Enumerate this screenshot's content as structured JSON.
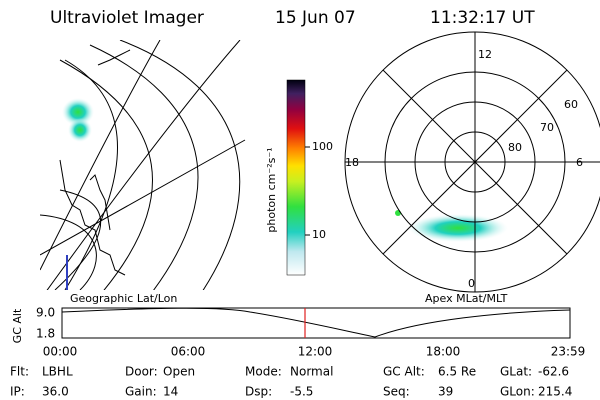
{
  "header": {
    "instrument": "Ultraviolet Imager",
    "date": "15 Jun 07",
    "time": "11:32:17 UT"
  },
  "colorbar": {
    "label": "photon cm⁻²s⁻¹",
    "ticks": [
      "100",
      "10"
    ]
  },
  "polar": {
    "mlt_labels": [
      "12",
      "18",
      "6",
      "0"
    ],
    "lat_labels": [
      "60",
      "70",
      "80"
    ]
  },
  "timeline": {
    "left_title": "Geographic Lat/Lon",
    "right_title": "Apex MLat/MLT",
    "axis_label": "GC Alt",
    "y_labels": [
      "9.0",
      "1.8"
    ],
    "x_labels": [
      "00:00",
      "06:00",
      "12:00",
      "18:00",
      "23:59"
    ]
  },
  "info": [
    [
      {
        "label": "Flt:",
        "value": "LBHL"
      },
      {
        "label": "Door:",
        "value": "Open"
      },
      {
        "label": "Mode:",
        "value": "Normal"
      },
      {
        "label": "GC Alt:",
        "value": "6.5 Re"
      },
      {
        "label": "GLat:",
        "value": "-62.6"
      }
    ],
    [
      {
        "label": "IP:",
        "value": "36.0"
      },
      {
        "label": "Gain:",
        "value": "14"
      },
      {
        "label": "Dsp:",
        "value": "-5.5"
      },
      {
        "label": "Seq:",
        "value": "39"
      },
      {
        "label": "GLon:",
        "value": "215.4"
      }
    ]
  ]
}
